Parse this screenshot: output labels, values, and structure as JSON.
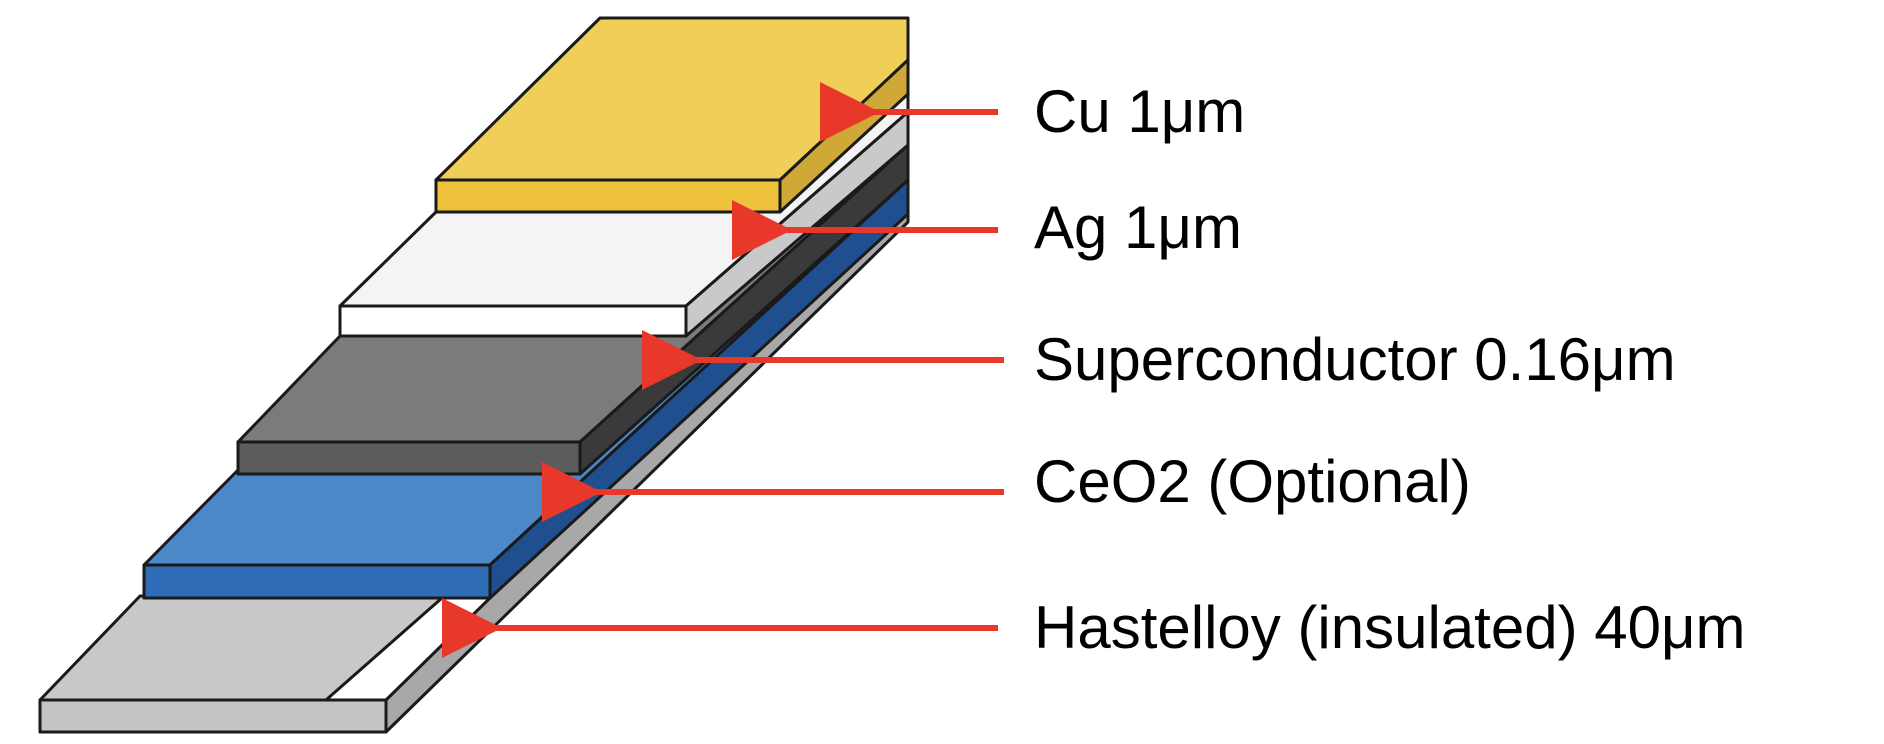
{
  "colors": {
    "background": "#ffffff",
    "outline": "#1a1a1a",
    "arrow": "#e8382a",
    "text": "#000000"
  },
  "layers": [
    {
      "id": "hastelloy",
      "label": "Hastelloy (insulated) 40μm",
      "colors": {
        "top": "#c8c8c8",
        "front": "#c4c4c4",
        "side": "#a8a8a8"
      }
    },
    {
      "id": "ceo2",
      "label": "CeO2 (Optional)",
      "colors": {
        "top": "#4c88c8",
        "front": "#2f6cb8",
        "side": "#1f4f8e"
      }
    },
    {
      "id": "superconductor",
      "label": "Superconductor 0.16μm",
      "colors": {
        "top": "#7b7b7b",
        "front": "#5c5c5c",
        "side": "#3a3a3a"
      }
    },
    {
      "id": "ag",
      "label": "Ag 1μm",
      "colors": {
        "top": "#f4f4f4",
        "front": "#ffffff",
        "side": "#c9c9c9"
      }
    },
    {
      "id": "cu",
      "label": "Cu 1μm",
      "colors": {
        "top": "#efcf58",
        "front": "#efc23c",
        "side": "#d0a838"
      }
    }
  ]
}
